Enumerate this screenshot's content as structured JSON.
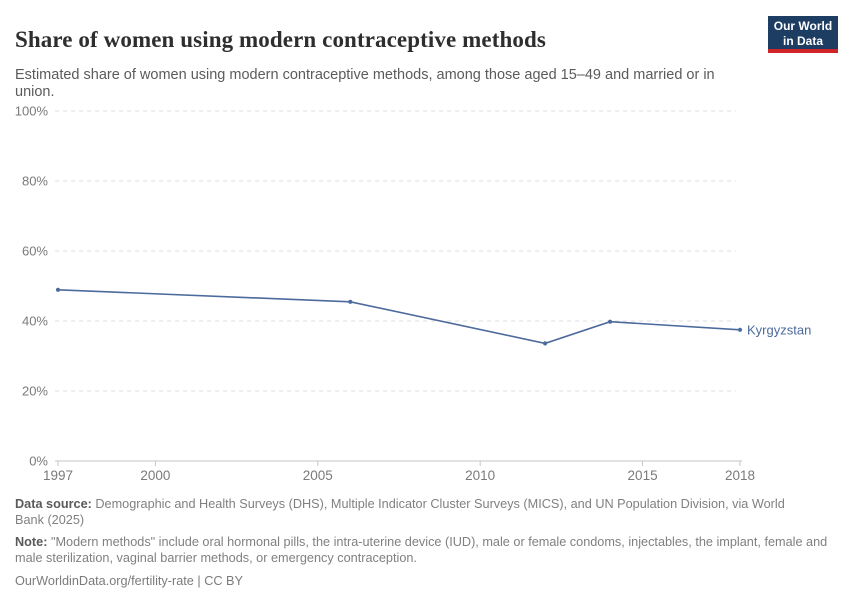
{
  "header": {
    "title": "Share of women using modern contraceptive methods",
    "subtitle": "Estimated share of women using modern contraceptive methods, among those aged 15–49 and married or in union.",
    "logo_line1": "Our World",
    "logo_line2": "in Data"
  },
  "chart_data": {
    "type": "line",
    "title": "Share of women using modern contraceptive methods",
    "subtitle": "Estimated share of women using modern contraceptive methods, among those aged 15–49 and married or in union.",
    "series": [
      {
        "name": "Kyrgyzstan",
        "x": [
          1997,
          2006,
          2012,
          2014,
          2018
        ],
        "values": [
          48.9,
          45.5,
          33.6,
          39.8,
          37.5
        ],
        "color": "#4C6A9C"
      }
    ],
    "xlabel": "",
    "ylabel": "",
    "xlim": [
      1997,
      2018
    ],
    "ylim": [
      0,
      100
    ],
    "xticks": [
      1997,
      2000,
      2005,
      2010,
      2015,
      2018
    ],
    "yticks": [
      0,
      20,
      40,
      60,
      80,
      100
    ],
    "ytick_suffix": "%",
    "grid": true,
    "grid_style": "dashed",
    "legend_position": "end-of-line"
  },
  "footer": {
    "data_source_label": "Data source:",
    "data_source_text": " Demographic and Health Surveys (DHS), Multiple Indicator Cluster Surveys (MICS), and UN Population Division, via World Bank (2025)",
    "note_label": "Note:",
    "note_text": " \"Modern methods\" include oral hormonal pills, the intra-uterine device (IUD), male or female condoms, injectables, the implant, female and male sterilization, vaginal barrier methods, or emergency contraception.",
    "url": "OurWorldinData.org/fertility-rate | CC BY"
  },
  "colors": {
    "line": "#4C6A9C",
    "grid": "#dcdcdc",
    "axis": "#c6c6c6",
    "tick_label": "#7a7a7a",
    "entity_label": "#4C6A9C",
    "logo_bg": "#1d3d63",
    "logo_red": "#cf2428"
  }
}
